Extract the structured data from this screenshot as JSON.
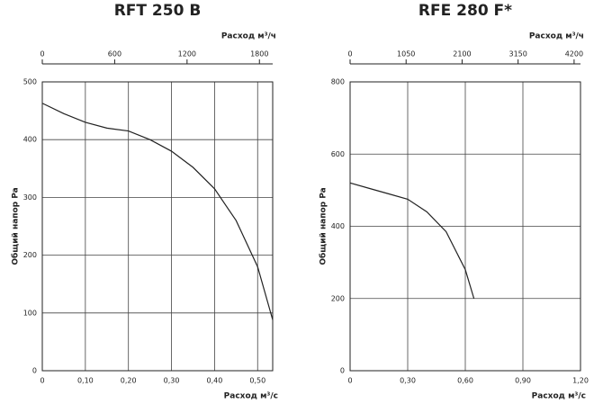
{
  "chart_data": [
    {
      "type": "line",
      "title": "RFT 250 B",
      "xlabel": "Расход м³/с",
      "ylabel": "Общий напор Pa",
      "x2label": "Расход м³/ч",
      "x": [
        0,
        0.05,
        0.1,
        0.15,
        0.2,
        0.25,
        0.3,
        0.35,
        0.4,
        0.45,
        0.5,
        0.535
      ],
      "series": [
        {
          "color": "#222222",
          "values": [
            463,
            445,
            430,
            420,
            415,
            400,
            380,
            352,
            315,
            260,
            180,
            88
          ]
        }
      ],
      "xlim": [
        0,
        0.535
      ],
      "ylim": [
        0,
        500
      ],
      "xticks": [
        0,
        {
          "value": 0.1,
          "label": "0,10"
        },
        {
          "value": 0.2,
          "label": "0,20"
        },
        {
          "value": 0.3,
          "label": "0,30"
        },
        {
          "value": 0.4,
          "label": "0,40"
        },
        {
          "value": 0.5,
          "label": "0,50"
        }
      ],
      "yticks": [
        0,
        100,
        200,
        300,
        400,
        500
      ],
      "x2lim": [
        0,
        1910
      ],
      "x2ticks": [
        0,
        600,
        1200,
        1800
      ],
      "grid": true
    },
    {
      "type": "line",
      "title": "RFE 280 F*",
      "xlabel": "Расход м³/с",
      "ylabel": "Общий напор Pa",
      "x2label": "Расход м³/ч",
      "x": [
        0,
        0.1,
        0.2,
        0.3,
        0.4,
        0.5,
        0.6,
        0.645
      ],
      "series": [
        {
          "color": "#222222",
          "values": [
            520,
            505,
            490,
            475,
            440,
            385,
            280,
            200
          ]
        }
      ],
      "xlim": [
        0,
        1.2
      ],
      "ylim": [
        0,
        800
      ],
      "xticks": [
        0,
        {
          "value": 0.3,
          "label": "0,30"
        },
        {
          "value": 0.6,
          "label": "0,60"
        },
        {
          "value": 0.9,
          "label": "0,90"
        },
        {
          "value": 1.2,
          "label": "1,20"
        }
      ],
      "yticks": [
        0,
        200,
        400,
        600,
        800
      ],
      "x2lim": [
        0,
        4320
      ],
      "x2ticks": [
        0,
        1050,
        2100,
        3150,
        4200
      ],
      "grid": true
    }
  ]
}
